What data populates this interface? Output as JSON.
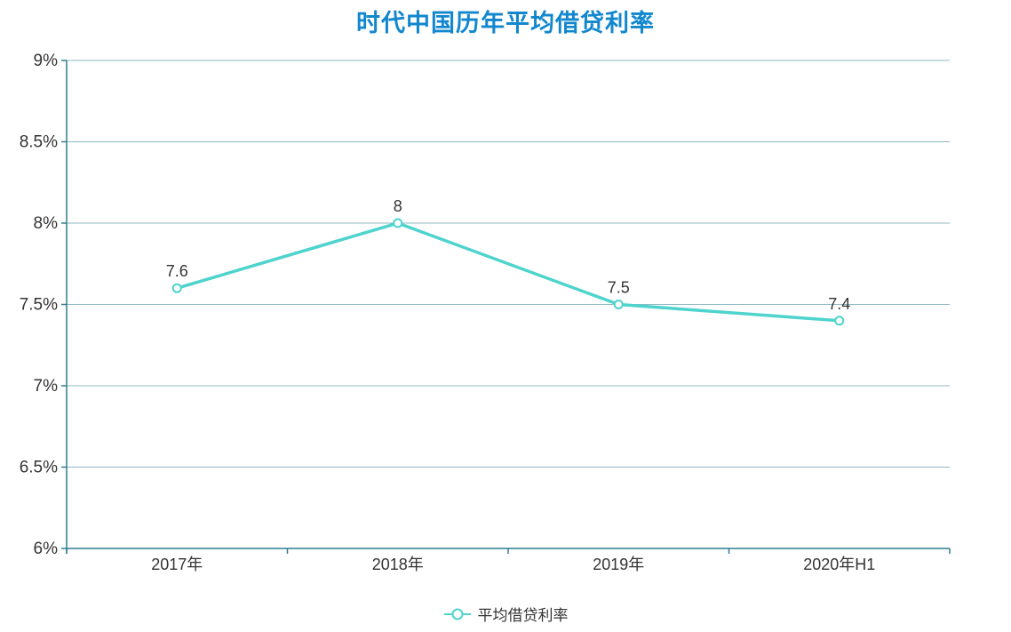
{
  "chart_data": {
    "type": "line",
    "title": "时代中国历年平均借贷利率",
    "categories": [
      "2017年",
      "2018年",
      "2019年",
      "2020年H1"
    ],
    "series": [
      {
        "name": "平均借贷利率",
        "values": [
          7.6,
          8,
          7.5,
          7.4
        ]
      }
    ],
    "data_labels": [
      "7.6",
      "8",
      "7.5",
      "7.4"
    ],
    "ylim": [
      6,
      9
    ],
    "ytick_step": 0.5,
    "ytick_labels": [
      "6%",
      "6.5%",
      "7%",
      "7.5%",
      "8%",
      "8.5%",
      "9%"
    ],
    "grid": "horizontal-only",
    "legend_position": "bottom-center",
    "colors": {
      "title": "#1287cd",
      "line": "#4ed3cd",
      "marker_fill": "#ffffff",
      "axis": "#2f7d90",
      "grid": "#8fb8c2",
      "text": "#333333"
    }
  }
}
